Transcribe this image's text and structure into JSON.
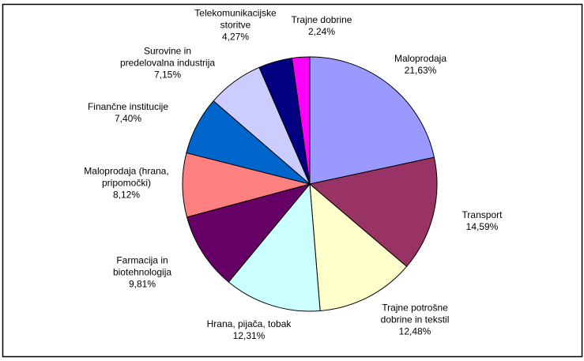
{
  "chart_data": {
    "type": "pie",
    "categories": [
      "Maloprodaja",
      "Transport",
      "Trajne potrošne\ndobrine in tekstil",
      "Hrana, pijača, tobak",
      "Farmacija in\nbiotehnologija",
      "Maloprodaja (hrana,\npripomočki)",
      "Finančne institucije",
      "Surovine in\npredelovalna industrija",
      "Telekomunikacijske\nstoritve",
      "Trajne dobrine"
    ],
    "values": [
      21.63,
      14.59,
      12.48,
      12.31,
      9.81,
      8.12,
      7.4,
      7.15,
      4.27,
      2.24
    ],
    "value_labels": [
      "21,63%",
      "14,59%",
      "12,48%",
      "12,31%",
      "9,81%",
      "8,12%",
      "7,40%",
      "7,15%",
      "4,27%",
      "2,24%"
    ],
    "colors": [
      "#9999ff",
      "#993366",
      "#ffffcc",
      "#ccffff",
      "#660066",
      "#ff8080",
      "#0066cc",
      "#ccccff",
      "#000080",
      "#ff00ff"
    ]
  }
}
